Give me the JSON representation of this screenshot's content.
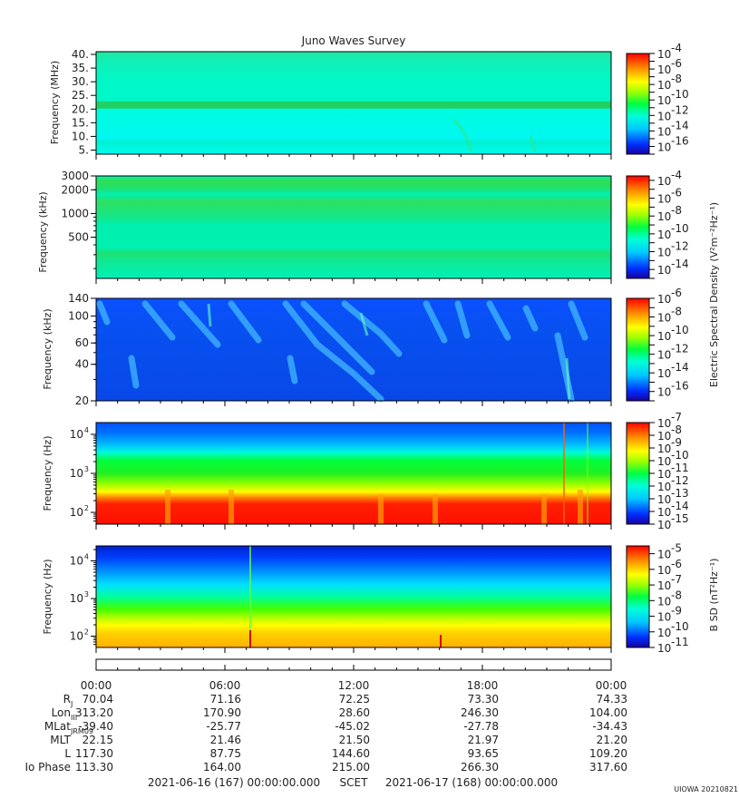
{
  "chart_data": [
    {
      "type": "heatmap",
      "panel": "hfwbr",
      "title": "Juno Waves Survey",
      "ylabel": "Frequency (MHz)",
      "yscale": "linear",
      "ylim": [
        3.5,
        41
      ],
      "yticks": [
        "40.",
        "35.",
        "30.",
        "25.",
        "20.",
        "15.",
        "10.",
        "5."
      ],
      "ytick_values": [
        40,
        35,
        30,
        25,
        20,
        15,
        10,
        5
      ],
      "colorbar": {
        "min_exp": -17,
        "max_exp": -4,
        "label_exps": [
          "-4",
          "-6",
          "-8",
          "-10",
          "-12",
          "-14",
          "-16"
        ]
      }
    },
    {
      "type": "heatmap",
      "panel": "hfr",
      "ylabel": "Frequency (kHz)",
      "yscale": "log",
      "ylim": [
        150,
        3000
      ],
      "yticks": [
        "3000",
        "2000",
        "1000",
        "500"
      ],
      "ytick_values": [
        3000,
        2000,
        1000,
        500
      ],
      "colorbar": {
        "min_exp": -15,
        "max_exp": -3.5,
        "label_exps": [
          "-4",
          "-6",
          "-8",
          "-10",
          "-12",
          "-14"
        ]
      }
    },
    {
      "type": "heatmap",
      "panel": "lfr-high",
      "ylabel": "Frequency (kHz)",
      "yscale": "log",
      "ylim": [
        20,
        140
      ],
      "yticks": [
        "140",
        "100",
        "60",
        "40",
        "20"
      ],
      "ytick_values": [
        140,
        100,
        60,
        40,
        20
      ],
      "colorbar": {
        "min_exp": -17,
        "max_exp": -6,
        "label_exps": [
          "-6",
          "-8",
          "-10",
          "-12",
          "-14",
          "-16"
        ],
        "shared_label": "Electric Spectral Density (V²m⁻²Hz⁻¹)"
      }
    },
    {
      "type": "heatmap",
      "panel": "lfr-e",
      "ylabel": "Frequency (Hz)",
      "yscale": "log",
      "ylim": [
        50,
        20000
      ],
      "yticks": [
        "10",
        "10",
        "10"
      ],
      "ytick_exps": [
        "4",
        "3",
        "2"
      ],
      "ytick_values": [
        10000,
        1000,
        100
      ],
      "colorbar": {
        "min_exp": -15,
        "max_exp": -7,
        "label_exps": [
          "-7",
          "-8",
          "-9",
          "-10",
          "-11",
          "-12",
          "-13",
          "-14",
          "-15"
        ]
      }
    },
    {
      "type": "heatmap",
      "panel": "lfr-b",
      "ylabel": "Frequency (Hz)",
      "yscale": "log",
      "ylim": [
        50,
        25000
      ],
      "yticks": [
        "10",
        "10",
        "10"
      ],
      "ytick_exps": [
        "4",
        "3",
        "2"
      ],
      "ytick_values": [
        10000,
        1000,
        100
      ],
      "colorbar": {
        "min_exp": -11,
        "max_exp": -4.5,
        "label_exps": [
          "-5",
          "-6",
          "-7",
          "-8",
          "-9",
          "-10",
          "-11"
        ],
        "label": "B SD (nT²Hz⁻¹)"
      }
    }
  ],
  "colorbar_base": "10",
  "x_axis": {
    "xlim_hours": [
      0,
      24
    ],
    "tick_labels": [
      "00:00",
      "06:00",
      "12:00",
      "18:00",
      "00:00"
    ],
    "tick_hours": [
      0,
      6,
      12,
      18,
      24
    ],
    "minor_step_hours": 1
  },
  "ephemeris": [
    {
      "label": "R",
      "sub": "J",
      "values": [
        "70.04",
        "71.16",
        "72.25",
        "73.30",
        "74.33"
      ]
    },
    {
      "label": "Lon",
      "sub": "III",
      "values": [
        "313.20",
        "170.90",
        "28.60",
        "246.30",
        "104.00"
      ]
    },
    {
      "label": "MLat",
      "sub": "JRM09",
      "values": [
        "-39.40",
        "-25.77",
        "-45.02",
        "-27.78",
        "-34.43"
      ]
    },
    {
      "label": "MLT",
      "sub": "",
      "values": [
        "22.15",
        "21.46",
        "21.50",
        "21.97",
        "21.20"
      ]
    },
    {
      "label": "L",
      "sub": "",
      "values": [
        "117.30",
        "87.75",
        "144.60",
        "93.65",
        "109.20"
      ]
    },
    {
      "label": "Io Phase",
      "sub": "",
      "values": [
        "113.30",
        "164.00",
        "215.00",
        "266.30",
        "317.60"
      ]
    }
  ],
  "footer": {
    "start": "2021-06-16 (167) 00:00:00.000",
    "scet": "SCET",
    "end": "2021-06-17 (168) 00:00:00.000",
    "stamp": "UIOWA 20210821"
  }
}
